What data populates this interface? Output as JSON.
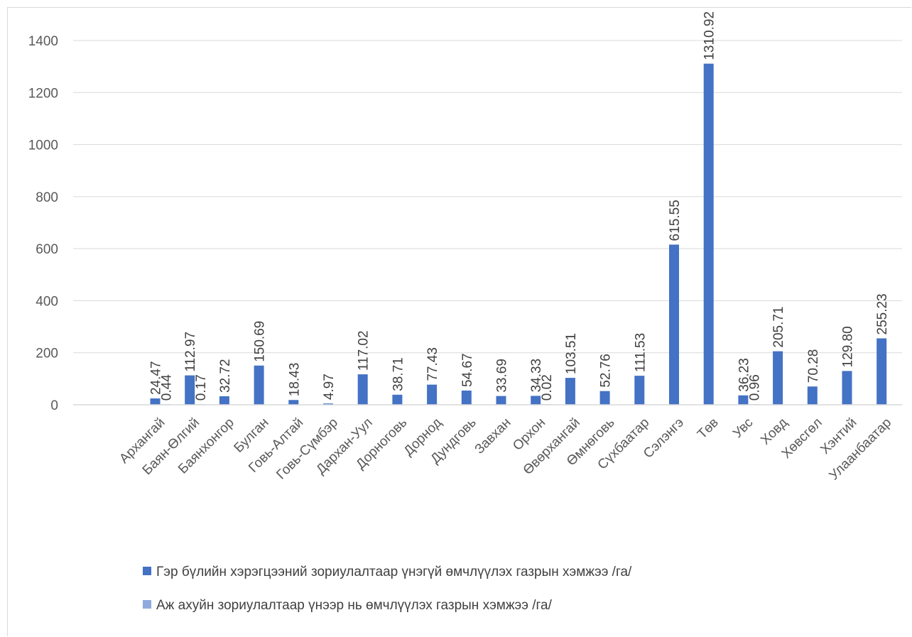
{
  "chart_data": {
    "type": "bar",
    "title": "",
    "xlabel": "",
    "ylabel": "",
    "ylim": [
      0,
      1400
    ],
    "yticks": [
      0,
      200,
      400,
      600,
      800,
      1000,
      1200,
      1400
    ],
    "grid": true,
    "legend_position": "bottom",
    "categories": [
      "Архангай",
      "Баян-Өлгий",
      "Баянхонгор",
      "Булган",
      "Говь-Алтай",
      "Говь-Сүмбэр",
      "Дархан-Уул",
      "Дорноговь",
      "Дорнод",
      "Дундговь",
      "Завхан",
      "Орхон",
      "Өвөрхангай",
      "Өмнөговь",
      "Сүхбаатар",
      "Сэлэнгэ",
      "Төв",
      "Увс",
      "Ховд",
      "Хөвсгөл",
      "Хэнтий",
      "Улаанбаатар"
    ],
    "series": [
      {
        "name": "Гэр бүлийн хэрэгцээний зориулалтаар үнэгүй өмчлүүлэх газрын хэмжээ /га/",
        "color": "#4472c4",
        "values": [
          24.47,
          112.97,
          32.72,
          150.69,
          18.43,
          4.97,
          117.02,
          38.71,
          77.43,
          54.67,
          33.69,
          34.33,
          103.51,
          52.76,
          111.53,
          615.55,
          1310.92,
          36.23,
          205.71,
          70.28,
          129.8,
          255.23
        ],
        "labels": [
          "24.47",
          "112.97",
          "32.72",
          "150.69",
          "18.43",
          "4.97",
          "117.02",
          "38.71",
          "77.43",
          "54.67",
          "33.69",
          "34.33",
          "103.51",
          "52.76",
          "111.53",
          "615.55",
          "1310.92",
          "36.23",
          "205.71",
          "70.28",
          "129.80",
          "255.23"
        ]
      },
      {
        "name": "Аж ахуйн зориулалтаар үнээр нь өмчлүүлэх газрын хэмжээ /га/",
        "color": "#8faadc",
        "values": [
          0.44,
          0.17,
          null,
          null,
          null,
          null,
          null,
          null,
          null,
          null,
          null,
          0.02,
          null,
          null,
          null,
          null,
          null,
          0.96,
          null,
          null,
          null,
          null
        ],
        "labels": [
          "0.44",
          "0.17",
          "",
          "",
          "",
          "",
          "",
          "",
          "",
          "",
          "",
          "0.02",
          "",
          "",
          "",
          "",
          "",
          "0.96",
          "",
          "",
          "",
          ""
        ]
      }
    ]
  }
}
